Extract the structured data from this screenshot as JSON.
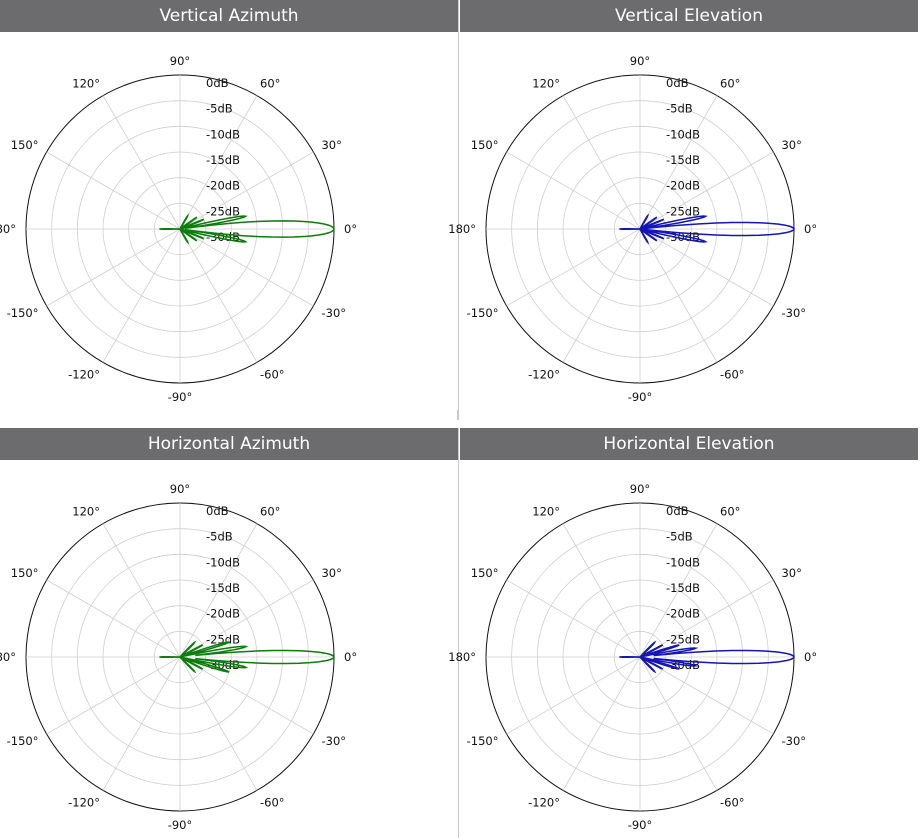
{
  "chart_data": [
    {
      "type": "polar",
      "title": "Vertical Azimuth",
      "color": "#0a7d0a",
      "angle_labels": [
        "0°",
        "30°",
        "60°",
        "90°",
        "120°",
        "150°",
        "180°",
        "-150°",
        "-120°",
        "-90°",
        "-60°",
        "-30°"
      ],
      "radial_labels": [
        "0dB",
        "-5dB",
        "-10dB",
        "-15dB",
        "-20dB",
        "-25dB",
        "-30dB"
      ],
      "radial_range_db": [
        -30,
        0
      ],
      "grid": true,
      "lobes": [
        {
          "angle_deg": 0,
          "gain_db": 0,
          "halfwidth_deg": 5
        },
        {
          "angle_deg": 11,
          "gain_db": -17,
          "halfwidth_deg": 3
        },
        {
          "angle_deg": -11,
          "gain_db": -17,
          "halfwidth_deg": 3
        },
        {
          "angle_deg": 22,
          "gain_db": -25,
          "halfwidth_deg": 3
        },
        {
          "angle_deg": -22,
          "gain_db": -25,
          "halfwidth_deg": 3
        },
        {
          "angle_deg": 35,
          "gain_db": -26,
          "halfwidth_deg": 4
        },
        {
          "angle_deg": -35,
          "gain_db": -26,
          "halfwidth_deg": 4
        },
        {
          "angle_deg": 60,
          "gain_db": -27,
          "halfwidth_deg": 6
        },
        {
          "angle_deg": -60,
          "gain_db": -27,
          "halfwidth_deg": 6
        },
        {
          "angle_deg": 180,
          "gain_db": -26,
          "halfwidth_deg": 4
        }
      ]
    },
    {
      "type": "polar",
      "title": "Vertical Elevation",
      "color": "#1515b8",
      "angle_labels": [
        "0°",
        "30°",
        "60°",
        "90°",
        "120°",
        "150°",
        "180°",
        "-150°",
        "-120°",
        "-90°",
        "-60°",
        "-30°"
      ],
      "radial_labels": [
        "0dB",
        "-5dB",
        "-10dB",
        "-15dB",
        "-20dB",
        "-25dB",
        "-30dB"
      ],
      "radial_range_db": [
        -30,
        0
      ],
      "grid": true,
      "lobes": [
        {
          "angle_deg": 0,
          "gain_db": 0,
          "halfwidth_deg": 4
        },
        {
          "angle_deg": 11,
          "gain_db": -17,
          "halfwidth_deg": 3
        },
        {
          "angle_deg": -11,
          "gain_db": -17,
          "halfwidth_deg": 3
        },
        {
          "angle_deg": 22,
          "gain_db": -25,
          "halfwidth_deg": 3
        },
        {
          "angle_deg": -22,
          "gain_db": -25,
          "halfwidth_deg": 3
        },
        {
          "angle_deg": 35,
          "gain_db": -26,
          "halfwidth_deg": 4
        },
        {
          "angle_deg": -35,
          "gain_db": -26,
          "halfwidth_deg": 4
        },
        {
          "angle_deg": 60,
          "gain_db": -27,
          "halfwidth_deg": 6
        },
        {
          "angle_deg": -60,
          "gain_db": -27,
          "halfwidth_deg": 6
        },
        {
          "angle_deg": 180,
          "gain_db": -26,
          "halfwidth_deg": 4
        }
      ]
    },
    {
      "type": "polar",
      "title": "Horizontal Azimuth",
      "color": "#0a7d0a",
      "angle_labels": [
        "0°",
        "30°",
        "60°",
        "90°",
        "120°",
        "150°",
        "180°",
        "-150°",
        "-120°",
        "-90°",
        "-60°",
        "-30°"
      ],
      "radial_labels": [
        "0dB",
        "-5dB",
        "-10dB",
        "-15dB",
        "-20dB",
        "-25dB",
        "-30dB"
      ],
      "radial_range_db": [
        -30,
        0
      ],
      "grid": true,
      "lobes": [
        {
          "angle_deg": 0,
          "gain_db": 0,
          "halfwidth_deg": 4
        },
        {
          "angle_deg": 9,
          "gain_db": -17,
          "halfwidth_deg": 3
        },
        {
          "angle_deg": -9,
          "gain_db": -17,
          "halfwidth_deg": 3
        },
        {
          "angle_deg": 17,
          "gain_db": -20,
          "halfwidth_deg": 3
        },
        {
          "angle_deg": -17,
          "gain_db": -20,
          "halfwidth_deg": 3
        },
        {
          "angle_deg": 28,
          "gain_db": -25,
          "halfwidth_deg": 3
        },
        {
          "angle_deg": -28,
          "gain_db": -25,
          "halfwidth_deg": 3
        },
        {
          "angle_deg": 45,
          "gain_db": -26,
          "halfwidth_deg": 5
        },
        {
          "angle_deg": -45,
          "gain_db": -26,
          "halfwidth_deg": 5
        },
        {
          "angle_deg": 180,
          "gain_db": -26,
          "halfwidth_deg": 4
        }
      ]
    },
    {
      "type": "polar",
      "title": "Horizontal Elevation",
      "color": "#1515b8",
      "angle_labels": [
        "0°",
        "30°",
        "60°",
        "90°",
        "120°",
        "150°",
        "180°",
        "-150°",
        "-120°",
        "-90°",
        "-60°",
        "-30°"
      ],
      "radial_labels": [
        "0dB",
        "-5dB",
        "-10dB",
        "-15dB",
        "-20dB",
        "-25dB",
        "-30dB"
      ],
      "radial_range_db": [
        -30,
        0
      ],
      "grid": true,
      "lobes": [
        {
          "angle_deg": 0,
          "gain_db": 0,
          "halfwidth_deg": 4
        },
        {
          "angle_deg": 9,
          "gain_db": -19,
          "halfwidth_deg": 3
        },
        {
          "angle_deg": -9,
          "gain_db": -19,
          "halfwidth_deg": 3
        },
        {
          "angle_deg": 17,
          "gain_db": -22,
          "halfwidth_deg": 3
        },
        {
          "angle_deg": -17,
          "gain_db": -22,
          "halfwidth_deg": 3
        },
        {
          "angle_deg": 28,
          "gain_db": -25,
          "halfwidth_deg": 3
        },
        {
          "angle_deg": -28,
          "gain_db": -25,
          "halfwidth_deg": 3
        },
        {
          "angle_deg": 45,
          "gain_db": -26,
          "halfwidth_deg": 5
        },
        {
          "angle_deg": -45,
          "gain_db": -26,
          "halfwidth_deg": 5
        },
        {
          "angle_deg": 180,
          "gain_db": -26,
          "halfwidth_deg": 4
        }
      ]
    }
  ]
}
